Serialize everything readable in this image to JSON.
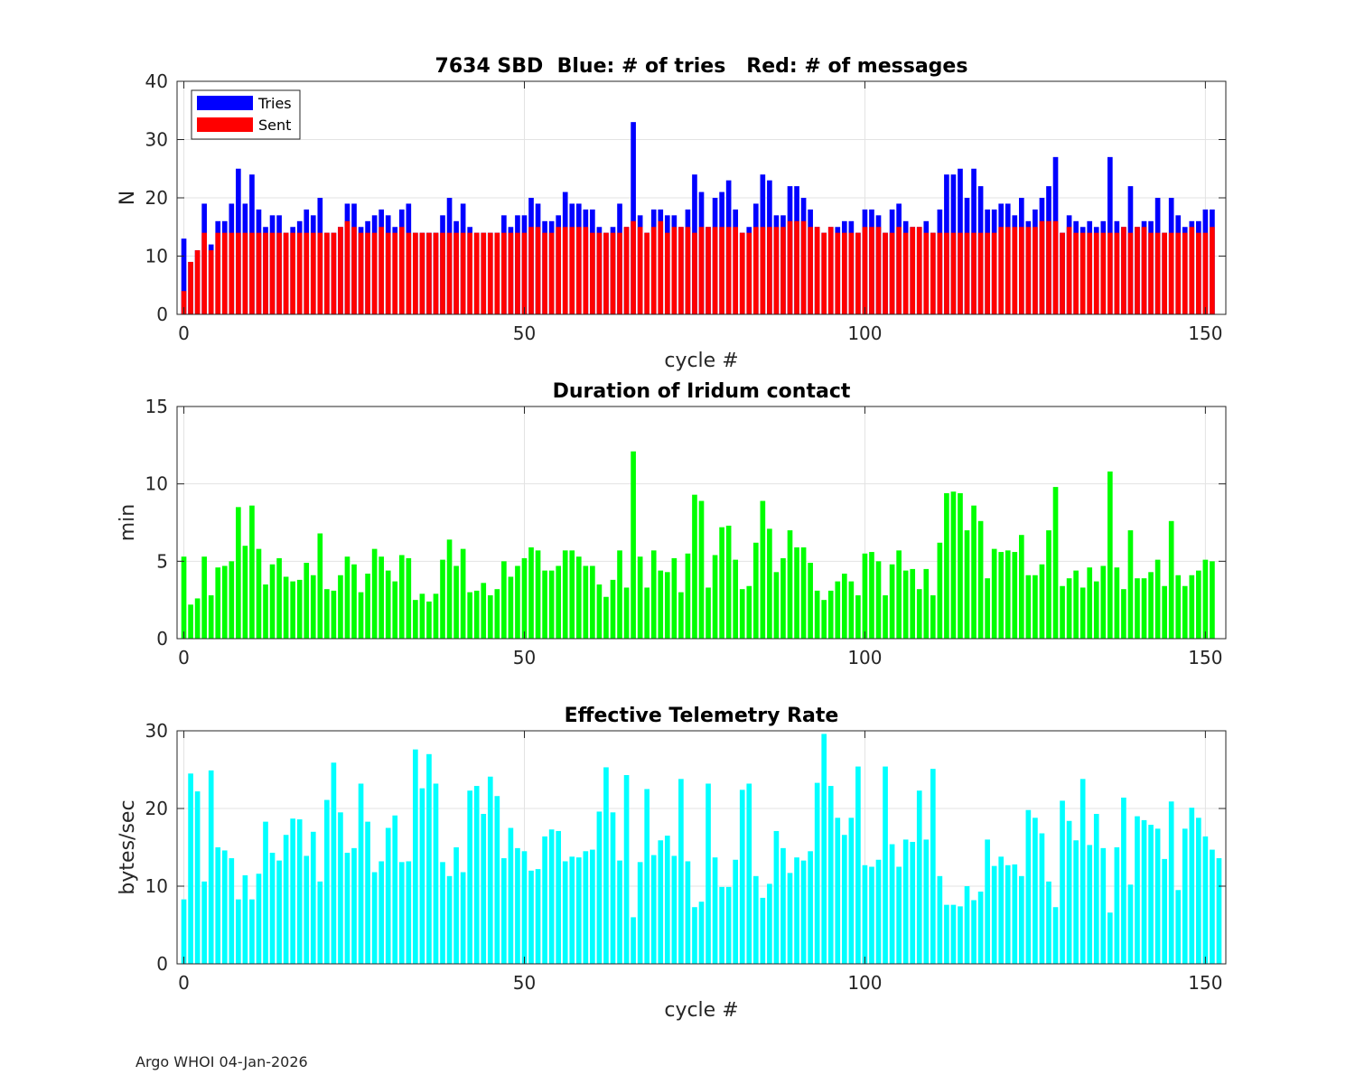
{
  "footer": "Argo WHOI 04-Jan-2026",
  "chart_data": [
    {
      "type": "bar",
      "title": "7634 SBD  Blue: # of tries   Red: # of messages",
      "xlabel": "cycle #",
      "ylabel": "N",
      "xlim": [
        -1,
        153
      ],
      "ylim": [
        0,
        40
      ],
      "xticks": [
        0,
        50,
        100,
        150
      ],
      "yticks": [
        0,
        10,
        20,
        30,
        40
      ],
      "grid": true,
      "legend": "top-left",
      "colors": {
        "Tries": "#0000ff",
        "Sent": "#ff0000"
      },
      "x_start": 0,
      "series": [
        {
          "name": "Tries",
          "values": [
            13,
            9,
            11,
            19,
            12,
            16,
            16,
            19,
            25,
            19,
            24,
            18,
            15,
            17,
            17,
            14,
            15,
            16,
            18,
            17,
            20,
            14,
            14,
            15,
            19,
            19,
            15,
            16,
            17,
            18,
            17,
            15,
            18,
            19,
            14,
            14,
            14,
            14,
            17,
            20,
            16,
            19,
            15,
            14,
            14,
            14,
            14,
            17,
            15,
            17,
            17,
            20,
            19,
            16,
            16,
            17,
            21,
            19,
            19,
            18,
            18,
            15,
            14,
            15,
            19,
            15,
            33,
            17,
            14,
            18,
            18,
            17,
            17,
            15,
            18,
            24,
            21,
            15,
            20,
            21,
            23,
            18,
            14,
            15,
            19,
            24,
            23,
            17,
            17,
            22,
            22,
            20,
            18,
            15,
            14,
            15,
            15,
            16,
            16,
            14,
            18,
            18,
            17,
            14,
            18,
            19,
            16,
            15,
            15,
            16,
            14,
            18,
            24,
            24,
            25,
            20,
            25,
            22,
            18,
            18,
            19,
            19,
            17,
            20,
            16,
            18,
            20,
            22,
            27,
            14,
            17,
            16,
            15,
            16,
            15,
            16,
            27,
            16,
            15,
            22,
            15,
            16,
            16,
            20,
            14,
            20,
            17,
            15,
            16,
            16,
            18,
            18
          ]
        },
        {
          "name": "Sent",
          "values": [
            4,
            9,
            11,
            14,
            11,
            14,
            14,
            14,
            14,
            14,
            14,
            14,
            14,
            14,
            14,
            14,
            14,
            14,
            14,
            14,
            14,
            14,
            14,
            15,
            16,
            15,
            14,
            14,
            14,
            15,
            14,
            14,
            15,
            14,
            14,
            14,
            14,
            14,
            14,
            14,
            14,
            14,
            14,
            14,
            14,
            14,
            14,
            14,
            14,
            14,
            14,
            15,
            15,
            14,
            14,
            15,
            15,
            15,
            15,
            15,
            14,
            14,
            14,
            14,
            14,
            15,
            16,
            15,
            14,
            15,
            16,
            14,
            15,
            15,
            15,
            14,
            15,
            15,
            15,
            15,
            15,
            15,
            14,
            14,
            15,
            15,
            15,
            15,
            15,
            16,
            16,
            16,
            15,
            15,
            14,
            15,
            14,
            14,
            14,
            14,
            15,
            15,
            15,
            14,
            14,
            15,
            14,
            15,
            15,
            14,
            14,
            14,
            14,
            14,
            14,
            14,
            14,
            14,
            14,
            14,
            15,
            15,
            15,
            15,
            15,
            15,
            16,
            16,
            16,
            14,
            15,
            14,
            14,
            14,
            14,
            14,
            14,
            14,
            15,
            14,
            15,
            15,
            14,
            14,
            14,
            14,
            14,
            14,
            15,
            14,
            14,
            15
          ]
        }
      ]
    },
    {
      "type": "bar",
      "title": "Duration of Iridum contact",
      "xlabel": "",
      "ylabel": "min",
      "xlim": [
        -1,
        153
      ],
      "ylim": [
        0,
        15
      ],
      "xticks": [
        0,
        50,
        100,
        150
      ],
      "yticks": [
        0,
        5,
        10,
        15
      ],
      "grid": true,
      "colors": {
        "bars": "#00ff00"
      },
      "x_start": 0,
      "values": [
        5.3,
        2.2,
        2.6,
        5.3,
        2.8,
        4.6,
        4.7,
        5.0,
        8.5,
        6.0,
        8.6,
        5.8,
        3.5,
        4.8,
        5.2,
        4.0,
        3.7,
        3.8,
        4.9,
        4.1,
        6.8,
        3.2,
        3.1,
        4.1,
        5.3,
        4.8,
        3.0,
        4.2,
        5.8,
        5.3,
        4.4,
        3.7,
        5.4,
        5.2,
        2.5,
        2.9,
        2.4,
        2.9,
        5.1,
        6.4,
        4.7,
        5.8,
        3.0,
        3.1,
        3.6,
        2.8,
        3.2,
        5.0,
        4.0,
        4.7,
        5.2,
        5.9,
        5.7,
        4.4,
        4.4,
        4.7,
        5.7,
        5.7,
        5.3,
        4.7,
        4.7,
        3.5,
        2.7,
        3.8,
        5.7,
        3.3,
        12.1,
        5.3,
        3.3,
        5.7,
        4.4,
        4.3,
        5.2,
        3.0,
        5.5,
        9.3,
        8.9,
        3.3,
        5.4,
        7.2,
        7.3,
        5.1,
        3.2,
        3.4,
        6.2,
        8.9,
        7.1,
        4.3,
        5.2,
        7.0,
        5.9,
        5.9,
        4.9,
        3.1,
        2.5,
        3.1,
        3.7,
        4.2,
        3.7,
        2.8,
        5.5,
        5.6,
        5.0,
        2.8,
        4.8,
        5.7,
        4.4,
        4.5,
        3.2,
        4.5,
        2.8,
        6.2,
        9.4,
        9.5,
        9.4,
        7.0,
        8.6,
        7.6,
        3.9,
        5.8,
        5.6,
        5.7,
        5.6,
        6.7,
        4.1,
        4.1,
        4.8,
        7.0,
        9.8,
        3.4,
        3.9,
        4.4,
        3.3,
        4.6,
        3.7,
        4.7,
        10.8,
        4.6,
        3.2,
        7.0,
        3.9,
        3.9,
        4.3,
        5.1,
        3.4,
        7.6,
        4.1,
        3.4,
        4.1,
        4.4,
        5.1,
        5.0
      ]
    },
    {
      "type": "bar",
      "title": "Effective Telemetry Rate",
      "xlabel": "cycle #",
      "ylabel": "bytes/sec",
      "xlim": [
        -1,
        153
      ],
      "ylim": [
        0,
        30
      ],
      "xticks": [
        0,
        50,
        100,
        150
      ],
      "yticks": [
        0,
        10,
        20,
        30
      ],
      "grid": true,
      "colors": {
        "bars": "#00ffff"
      },
      "x_start": 0,
      "values": [
        8.3,
        24.5,
        22.2,
        10.6,
        24.9,
        15.0,
        14.6,
        13.6,
        8.3,
        11.4,
        8.3,
        11.6,
        18.3,
        14.3,
        13.3,
        16.6,
        18.7,
        18.6,
        13.9,
        17.0,
        10.6,
        21.1,
        25.9,
        19.5,
        14.3,
        14.9,
        23.2,
        18.3,
        11.8,
        13.2,
        17.5,
        19.1,
        13.1,
        13.2,
        27.6,
        22.6,
        27.0,
        23.2,
        13.1,
        11.3,
        15.0,
        11.8,
        22.3,
        22.9,
        19.3,
        24.1,
        21.6,
        13.6,
        17.5,
        14.9,
        14.5,
        12.0,
        12.2,
        16.4,
        17.3,
        17.1,
        13.2,
        13.8,
        13.7,
        14.5,
        14.7,
        19.6,
        25.3,
        19.5,
        13.3,
        24.3,
        6.0,
        13.1,
        22.5,
        14.0,
        15.9,
        16.5,
        13.9,
        23.8,
        13.2,
        7.3,
        8.0,
        23.2,
        13.7,
        9.9,
        9.9,
        13.4,
        22.4,
        23.2,
        11.3,
        8.5,
        10.3,
        17.1,
        14.9,
        11.7,
        13.7,
        13.3,
        14.5,
        23.3,
        29.6,
        22.9,
        18.8,
        16.6,
        18.8,
        25.4,
        12.7,
        12.5,
        13.4,
        25.4,
        15.4,
        12.5,
        16.0,
        15.7,
        22.3,
        16.0,
        25.1,
        11.3,
        7.6,
        7.6,
        7.4,
        10.0,
        8.2,
        9.3,
        16.0,
        12.6,
        13.8,
        12.7,
        12.8,
        11.3,
        19.8,
        18.8,
        16.8,
        10.6,
        7.3,
        21.0,
        18.4,
        15.9,
        23.8,
        15.3,
        19.3,
        14.9,
        6.6,
        15.0,
        21.4,
        10.2,
        19.0,
        18.5,
        17.9,
        17.4,
        13.5,
        20.9,
        9.5,
        17.4,
        20.1,
        18.8,
        16.4,
        14.7,
        13.6
      ]
    }
  ]
}
